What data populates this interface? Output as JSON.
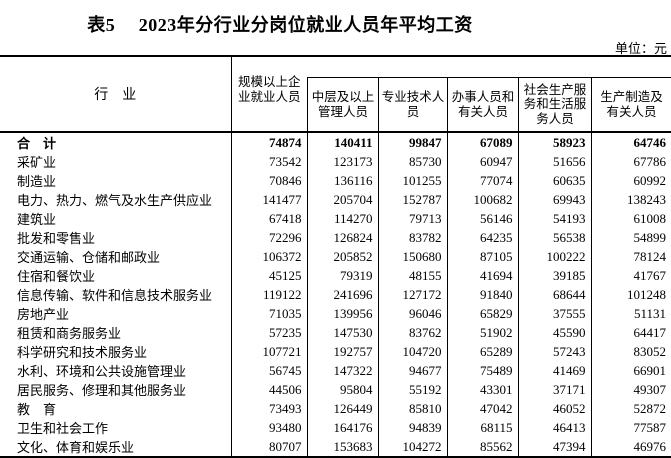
{
  "title": "表5　 2023年分行业分岗位就业人员年平均工资",
  "unit_label": "单位：元",
  "table": {
    "industry_header": "行　业",
    "columns": [
      "规模以上企\n业就业人员",
      "中层及以上\n管理人员",
      "专业技术人\n员",
      "办事人员和\n有关人员",
      "社会生产服\n务和生活服\n务人员",
      "生产制造及\n有关人员"
    ],
    "rows": [
      {
        "industry": "合　计",
        "bold": true,
        "values": [
          "74874",
          "140411",
          "99847",
          "67089",
          "58923",
          "64746"
        ]
      },
      {
        "industry": "采矿业",
        "bold": false,
        "values": [
          "73542",
          "123173",
          "85730",
          "60947",
          "51656",
          "67786"
        ]
      },
      {
        "industry": "制造业",
        "bold": false,
        "values": [
          "70846",
          "136116",
          "101255",
          "77074",
          "60635",
          "60992"
        ]
      },
      {
        "industry": "电力、热力、燃气及水生产供应业",
        "bold": false,
        "values": [
          "141477",
          "205704",
          "152787",
          "100682",
          "69943",
          "138243"
        ]
      },
      {
        "industry": "建筑业",
        "bold": false,
        "values": [
          "67418",
          "114270",
          "79713",
          "56146",
          "54193",
          "61008"
        ]
      },
      {
        "industry": "批发和零售业",
        "bold": false,
        "values": [
          "72296",
          "126824",
          "83782",
          "64235",
          "56538",
          "54899"
        ]
      },
      {
        "industry": "交通运输、仓储和邮政业",
        "bold": false,
        "values": [
          "106372",
          "205852",
          "150680",
          "87105",
          "100222",
          "78124"
        ]
      },
      {
        "industry": "住宿和餐饮业",
        "bold": false,
        "values": [
          "45125",
          "79319",
          "48155",
          "41694",
          "39185",
          "41767"
        ]
      },
      {
        "industry": "信息传输、软件和信息技术服务业",
        "bold": false,
        "values": [
          "119122",
          "241696",
          "127172",
          "91840",
          "68644",
          "101248"
        ]
      },
      {
        "industry": "房地产业",
        "bold": false,
        "values": [
          "71035",
          "139956",
          "96046",
          "65829",
          "37555",
          "51131"
        ]
      },
      {
        "industry": "租赁和商务服务业",
        "bold": false,
        "values": [
          "57235",
          "147530",
          "83762",
          "51902",
          "45590",
          "64417"
        ]
      },
      {
        "industry": "科学研究和技术服务业",
        "bold": false,
        "values": [
          "107721",
          "192757",
          "104720",
          "65289",
          "57243",
          "83052"
        ]
      },
      {
        "industry": "水利、环境和公共设施管理业",
        "bold": false,
        "values": [
          "56745",
          "147322",
          "94677",
          "75489",
          "41469",
          "66901"
        ]
      },
      {
        "industry": "居民服务、修理和其他服务业",
        "bold": false,
        "values": [
          "44506",
          "95804",
          "55192",
          "43301",
          "37171",
          "49307"
        ]
      },
      {
        "industry": "教　育",
        "bold": false,
        "values": [
          "73493",
          "126449",
          "85810",
          "47042",
          "46052",
          "52872"
        ]
      },
      {
        "industry": "卫生和社会工作",
        "bold": false,
        "values": [
          "93480",
          "164176",
          "94839",
          "68115",
          "46413",
          "77587"
        ]
      },
      {
        "industry": "文化、体育和娱乐业",
        "bold": false,
        "values": [
          "80707",
          "153683",
          "104272",
          "85562",
          "47394",
          "46976"
        ]
      }
    ]
  }
}
